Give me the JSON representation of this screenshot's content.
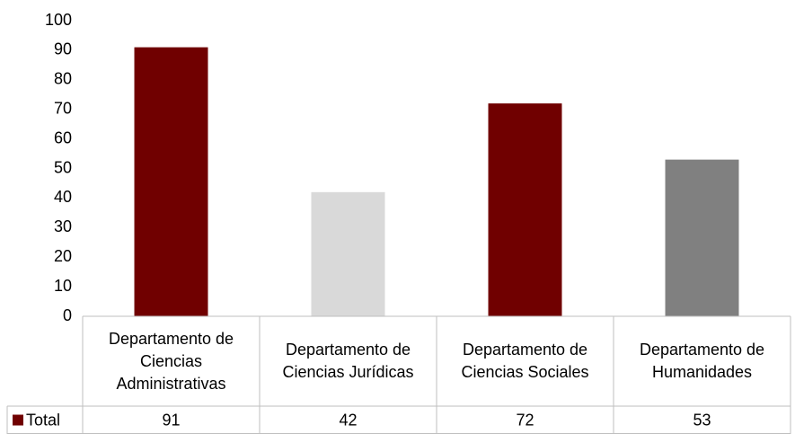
{
  "chart_data": {
    "type": "bar",
    "categories": [
      "Departamento de Ciencias Administrativas",
      "Departamento de Ciencias Jurídicas",
      "Departamento de Ciencias Sociales",
      "Departamento de Humanidades"
    ],
    "series": [
      {
        "name": "Total",
        "color": "#700000",
        "colors": [
          "#700000",
          "#d9d9d9",
          "#700000",
          "#808080"
        ],
        "values": [
          91,
          42,
          72,
          53
        ]
      }
    ],
    "ylim": [
      0,
      100
    ],
    "yticks": [
      0,
      10,
      20,
      30,
      40,
      50,
      60,
      70,
      80,
      90,
      100
    ],
    "grid": false
  }
}
